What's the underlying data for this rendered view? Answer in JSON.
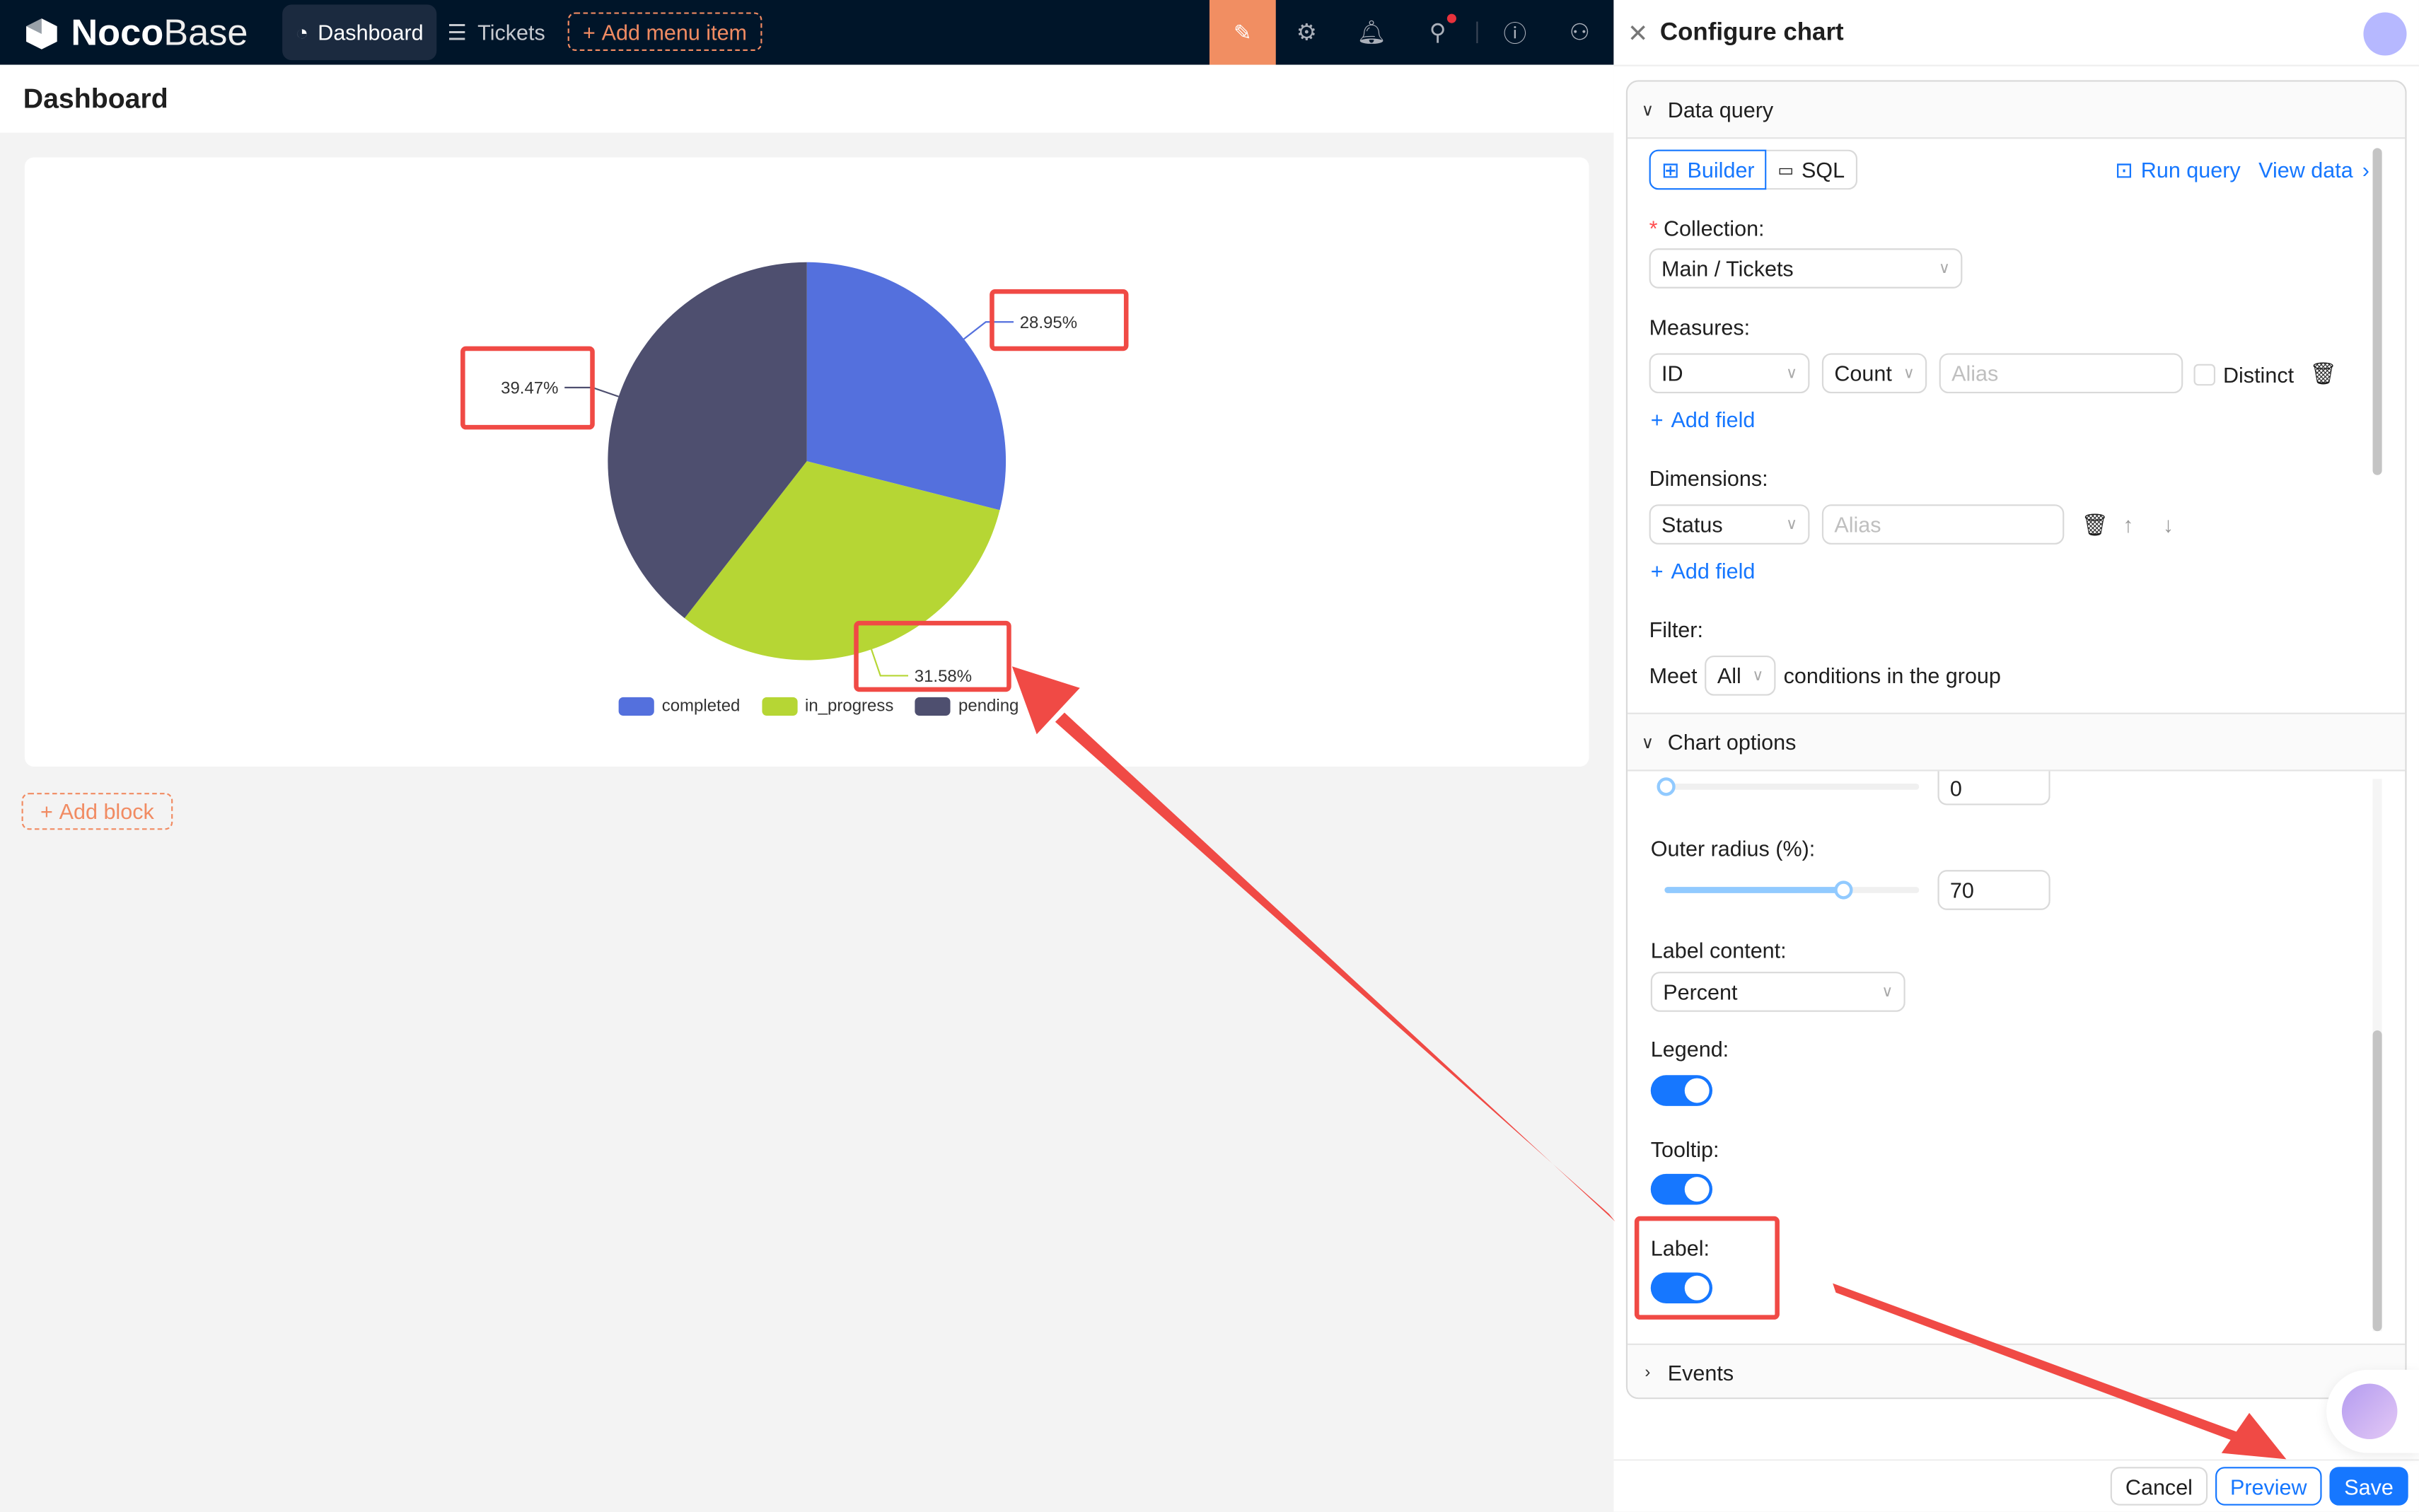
{
  "app": {
    "logo_bold": "Noco",
    "logo_light": "Base"
  },
  "nav": {
    "items": [
      {
        "label": "Dashboard",
        "icon": "dashboard-icon",
        "active": true
      },
      {
        "label": "Tickets",
        "icon": "menu-icon"
      }
    ],
    "add_label": "Add menu item"
  },
  "topbar_icons": [
    "ui-editor-icon",
    "settings-icon",
    "bell-icon",
    "search-icon",
    "help-icon",
    "user-icon"
  ],
  "page": {
    "title": "Dashboard",
    "add_block": "Add block"
  },
  "chart_data": {
    "type": "pie",
    "categories": [
      "completed",
      "in_progress",
      "pending"
    ],
    "values": [
      28.95,
      31.58,
      39.47
    ],
    "labels": [
      "28.95%",
      "31.58%",
      "39.47%"
    ],
    "colors": [
      "#5470dd",
      "#b6d634",
      "#4e4f6f"
    ],
    "legend": "bottom"
  },
  "drawer": {
    "title": "Configure chart",
    "data_query": {
      "title": "Data query",
      "builder": "Builder",
      "sql": "SQL",
      "run_query": "Run query",
      "view_data": "View data",
      "collection_label": "Collection:",
      "collection_value": "Main / Tickets",
      "measures_label": "Measures:",
      "measure_field": "ID",
      "measure_agg": "Count",
      "alias_placeholder": "Alias",
      "distinct": "Distinct",
      "add_field": "Add field",
      "dimensions_label": "Dimensions:",
      "dimension_field": "Status",
      "filter_label": "Filter:",
      "meet": "Meet",
      "meet_value": "All",
      "conditions": "conditions in the group"
    },
    "chart_options": {
      "title": "Chart options",
      "inner_radius": "0",
      "outer_radius_label": "Outer radius (%):",
      "outer_radius": "70",
      "label_content_label": "Label content:",
      "label_content": "Percent",
      "legend_label": "Legend:",
      "legend_on": true,
      "tooltip_label": "Tooltip:",
      "tooltip_on": true,
      "label_label": "Label:",
      "label_on": true
    },
    "events": "Events",
    "cancel": "Cancel",
    "preview": "Preview",
    "save": "Save"
  },
  "colors": {
    "accent": "#1677ff",
    "brand": "#f18e62",
    "topbar": "#001529",
    "annotation": "#f04a45"
  }
}
